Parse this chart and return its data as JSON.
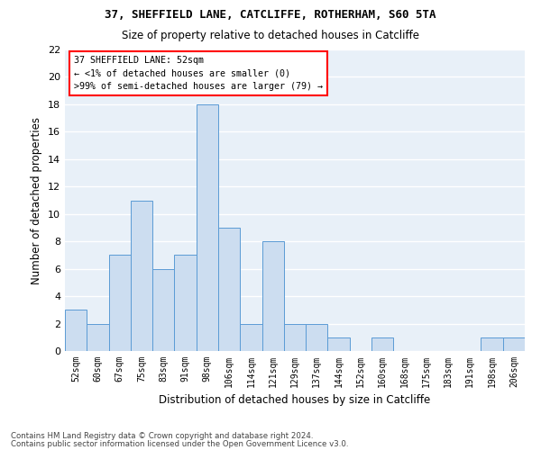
{
  "title1": "37, SHEFFIELD LANE, CATCLIFFE, ROTHERHAM, S60 5TA",
  "title2": "Size of property relative to detached houses in Catcliffe",
  "xlabel": "Distribution of detached houses by size in Catcliffe",
  "ylabel": "Number of detached properties",
  "categories": [
    "52sqm",
    "60sqm",
    "67sqm",
    "75sqm",
    "83sqm",
    "91sqm",
    "98sqm",
    "106sqm",
    "114sqm",
    "121sqm",
    "129sqm",
    "137sqm",
    "144sqm",
    "152sqm",
    "160sqm",
    "168sqm",
    "175sqm",
    "183sqm",
    "191sqm",
    "198sqm",
    "206sqm"
  ],
  "values": [
    3,
    2,
    7,
    11,
    6,
    7,
    18,
    9,
    2,
    8,
    2,
    2,
    1,
    0,
    1,
    0,
    0,
    0,
    0,
    1,
    1
  ],
  "bar_color": "#ccddf0",
  "bar_edge_color": "#5b9bd5",
  "background_color": "#ffffff",
  "plot_bg_color": "#e8f0f8",
  "grid_color": "#ffffff",
  "ylim": [
    0,
    22
  ],
  "yticks": [
    0,
    2,
    4,
    6,
    8,
    10,
    12,
    14,
    16,
    18,
    20,
    22
  ],
  "annotation_line1": "37 SHEFFIELD LANE: 52sqm",
  "annotation_line2": "← <1% of detached houses are smaller (0)",
  "annotation_line3": ">99% of semi-detached houses are larger (79) →",
  "footer1": "Contains HM Land Registry data © Crown copyright and database right 2024.",
  "footer2": "Contains public sector information licensed under the Open Government Licence v3.0."
}
